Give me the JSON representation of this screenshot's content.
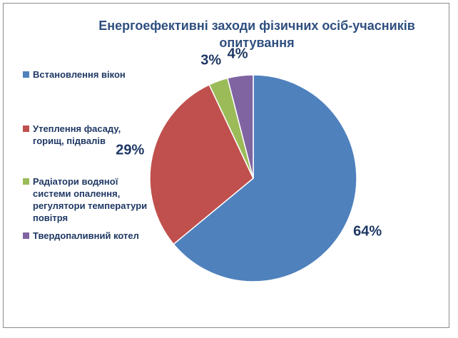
{
  "chart_data": {
    "type": "pie",
    "title": "Енергоефективні заходи фізичних осіб-учасників опитування",
    "categories": [
      "Встановлення вікон",
      "Утеплення фасаду, горищ, підвалів",
      "Радіатори водяної системи опалення, регулятори температури повітря",
      "Твердопаливний котел"
    ],
    "values": [
      64,
      29,
      3,
      4
    ],
    "value_labels": [
      "64%",
      "29%",
      "3%",
      "4%"
    ],
    "colors": [
      "#4f81bd",
      "#c0504d",
      "#9bbb59",
      "#8064a2"
    ],
    "legend_position": "left"
  }
}
